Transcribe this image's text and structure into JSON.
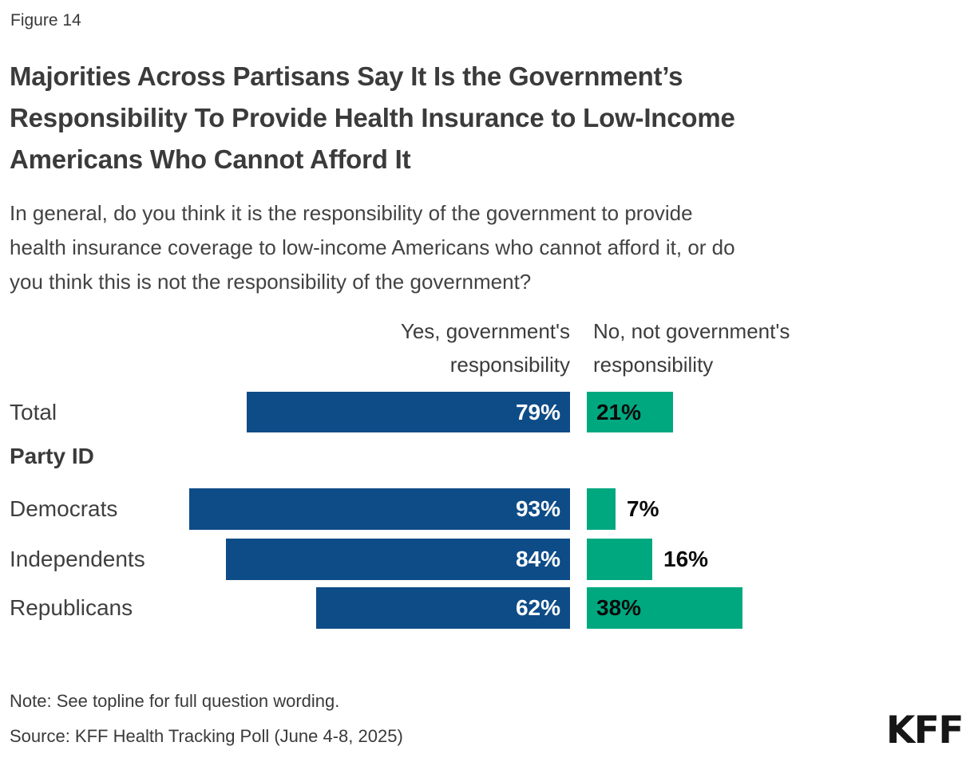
{
  "figure_label": "Figure 14",
  "title_lines": [
    "Majorities Across Partisans Say It Is the Government’s",
    "Responsibility To Provide Health Insurance to Low-Income",
    "Americans Who Cannot Afford It"
  ],
  "subtitle_lines": [
    "In general, do you think it is the responsibility of the government to provide",
    "health insurance coverage to low-income Americans who cannot afford it, or do",
    "you think this is not the responsibility of the government?"
  ],
  "column_headers": {
    "yes_lines": [
      "Yes, government's",
      "responsibility"
    ],
    "no_lines": [
      "No, not government's",
      "responsibility"
    ]
  },
  "colors": {
    "yes_bar": "#0E4C87",
    "no_bar": "#00A880",
    "yes_value_text": "#FFFFFF",
    "no_value_text": "#0B0B0B"
  },
  "chart_data": {
    "type": "bar",
    "orientation": "horizontal-diverging",
    "categories": [
      "Total",
      "Democrats",
      "Independents",
      "Republicans"
    ],
    "group_header": "Party ID",
    "group_header_applies_to": [
      "Democrats",
      "Independents",
      "Republicans"
    ],
    "series": [
      {
        "name": "Yes, government's responsibility",
        "color": "#0E4C87",
        "values": [
          79,
          93,
          84,
          62
        ],
        "value_labels": [
          "79%",
          "93%",
          "84%",
          "62%"
        ]
      },
      {
        "name": "No, not government's responsibility",
        "color": "#00A880",
        "values": [
          21,
          7,
          16,
          38
        ],
        "value_labels": [
          "21%",
          "7%",
          "16%",
          "38%"
        ]
      }
    ],
    "xlim": [
      0,
      100
    ],
    "unit": "%",
    "legend_position": "column-headers",
    "grid": false
  },
  "note": "Note: See topline for full question wording.",
  "source": "Source: KFF Health Tracking Poll (June 4-8, 2025)",
  "logo_text": "KFF"
}
